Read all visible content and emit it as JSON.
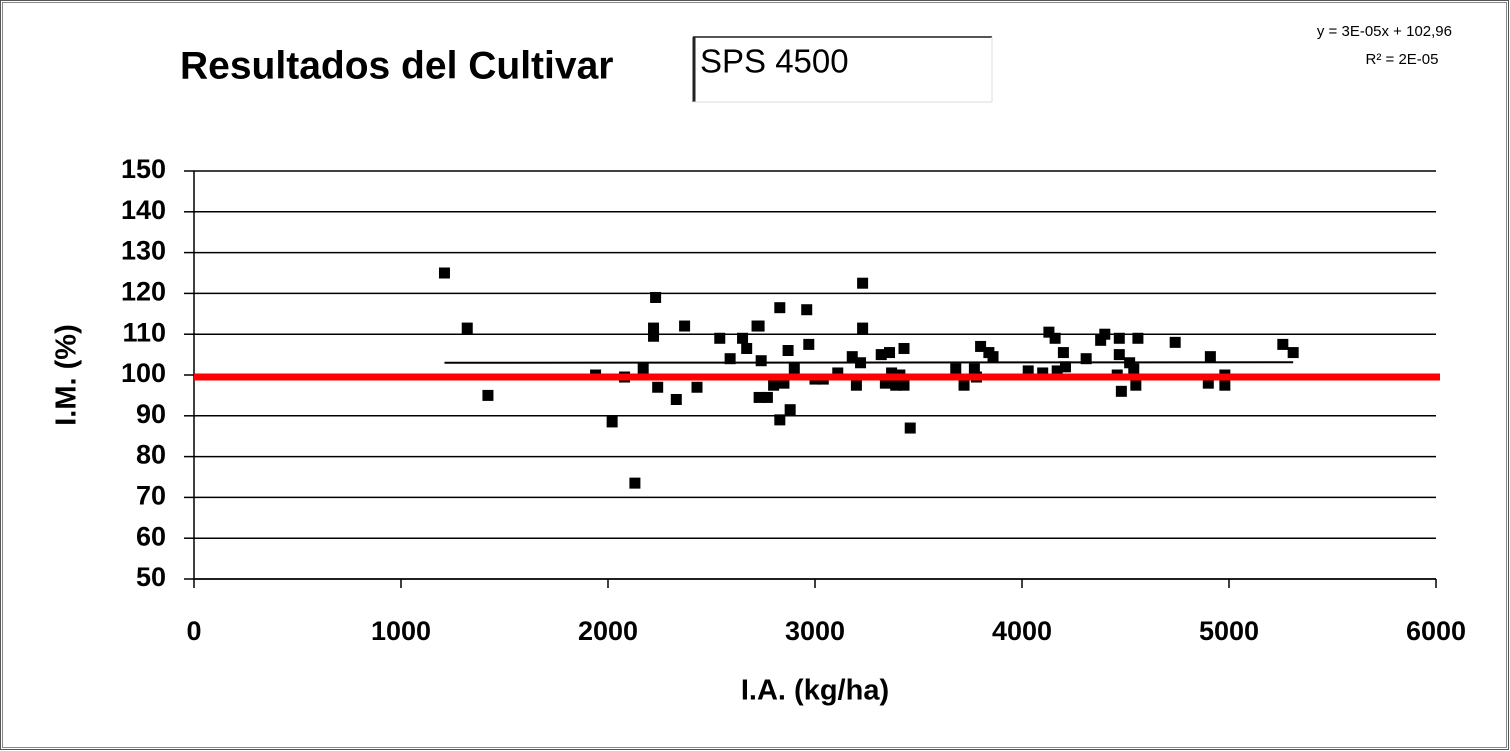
{
  "chart_data": {
    "type": "scatter",
    "title": "Resultados del Cultivar",
    "subtitle": "SPS 4500",
    "x_label": "I.A. (kg/ha)",
    "y_label": "I.M. (%)",
    "x": [
      1210,
      1320,
      1420,
      1940,
      2020,
      2080,
      2130,
      2170,
      2230,
      2220,
      2220,
      2240,
      2330,
      2370,
      2430,
      2540,
      2590,
      2650,
      2670,
      2720,
      2730,
      2730,
      2740,
      2770,
      2800,
      2830,
      2830,
      2850,
      2870,
      2880,
      2900,
      2960,
      2970,
      3000,
      3040,
      3110,
      3180,
      3200,
      3220,
      3230,
      3230,
      3320,
      3340,
      3360,
      3370,
      3390,
      3410,
      3430,
      3430,
      3460,
      3680,
      3720,
      3770,
      3780,
      3800,
      3840,
      3860,
      4030,
      4100,
      4130,
      4160,
      4170,
      4200,
      4210,
      4310,
      4380,
      4400,
      4470,
      4470,
      4460,
      4480,
      4520,
      4540,
      4550,
      4560,
      4740,
      4910,
      4900,
      4980,
      4980,
      5260,
      5310
    ],
    "values": [
      125,
      111.5,
      95,
      100,
      88.5,
      99.5,
      73.5,
      101.5,
      119,
      111.5,
      109.5,
      97,
      94,
      112,
      97,
      109,
      104,
      109,
      106.5,
      112,
      112,
      94.5,
      103.5,
      94.5,
      97.5,
      116.5,
      89,
      98,
      106,
      91.5,
      101.5,
      116,
      107.5,
      99,
      99,
      100.5,
      104.5,
      97.5,
      103,
      122.5,
      111.5,
      105,
      98,
      105.5,
      100.5,
      97.5,
      100,
      106.5,
      97.5,
      87,
      101.5,
      97.5,
      101.5,
      99.5,
      107,
      105.5,
      104.5,
      101,
      100.5,
      110.5,
      109,
      101,
      105.5,
      102,
      104,
      108.5,
      110,
      109,
      105,
      100,
      96,
      103,
      101.5,
      97.5,
      109,
      108,
      104.5,
      98,
      100,
      97.5,
      107.5,
      105.5
    ],
    "color": "#000000",
    "xlim": [
      0,
      6000
    ],
    "xticks": [
      0,
      1000,
      2000,
      3000,
      4000,
      5000,
      6000
    ],
    "ylim": [
      50,
      150
    ],
    "yticks": [
      50,
      60,
      70,
      80,
      90,
      100,
      110,
      120,
      130,
      140,
      150
    ],
    "grid": true,
    "reference_line": {
      "value": 99.5,
      "color": "#ff0000"
    },
    "trendline": {
      "slope": 3e-05,
      "intercept": 102.96,
      "color": "#000000",
      "equation": "y = 3E-05x + 102,96",
      "r_squared": "R² = 2E-05"
    }
  }
}
